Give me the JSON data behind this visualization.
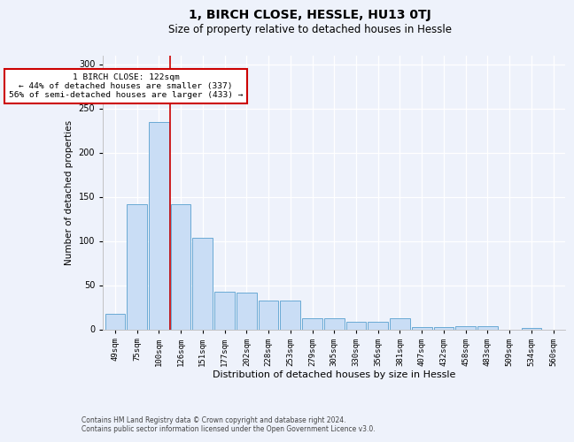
{
  "title": "1, BIRCH CLOSE, HESSLE, HU13 0TJ",
  "subtitle": "Size of property relative to detached houses in Hessle",
  "xlabel": "Distribution of detached houses by size in Hessle",
  "ylabel": "Number of detached properties",
  "categories": [
    "49sqm",
    "75sqm",
    "100sqm",
    "126sqm",
    "151sqm",
    "177sqm",
    "202sqm",
    "228sqm",
    "253sqm",
    "279sqm",
    "305sqm",
    "330sqm",
    "356sqm",
    "381sqm",
    "407sqm",
    "432sqm",
    "458sqm",
    "483sqm",
    "509sqm",
    "534sqm",
    "560sqm"
  ],
  "values": [
    18,
    142,
    235,
    142,
    104,
    43,
    42,
    33,
    33,
    13,
    13,
    9,
    9,
    13,
    3,
    3,
    4,
    4,
    0,
    2,
    0
  ],
  "bar_color": "#c9ddf5",
  "bar_edge_color": "#6aaad4",
  "vline_color": "#cc0000",
  "vline_x_index": 2.5,
  "annotation_text": "1 BIRCH CLOSE: 122sqm\n← 44% of detached houses are smaller (337)\n56% of semi-detached houses are larger (433) →",
  "annotation_box_color": "white",
  "annotation_box_edge": "#cc0000",
  "ylim": [
    0,
    310
  ],
  "yticks": [
    0,
    50,
    100,
    150,
    200,
    250,
    300
  ],
  "background_color": "#eef2fb",
  "grid_color": "#ffffff",
  "footer_text": "Contains HM Land Registry data © Crown copyright and database right 2024.\nContains public sector information licensed under the Open Government Licence v3.0.",
  "title_fontsize": 10,
  "subtitle_fontsize": 8.5,
  "xlabel_fontsize": 8,
  "ylabel_fontsize": 7.5,
  "tick_fontsize": 6.5,
  "annotation_fontsize": 6.8,
  "footer_fontsize": 5.5
}
